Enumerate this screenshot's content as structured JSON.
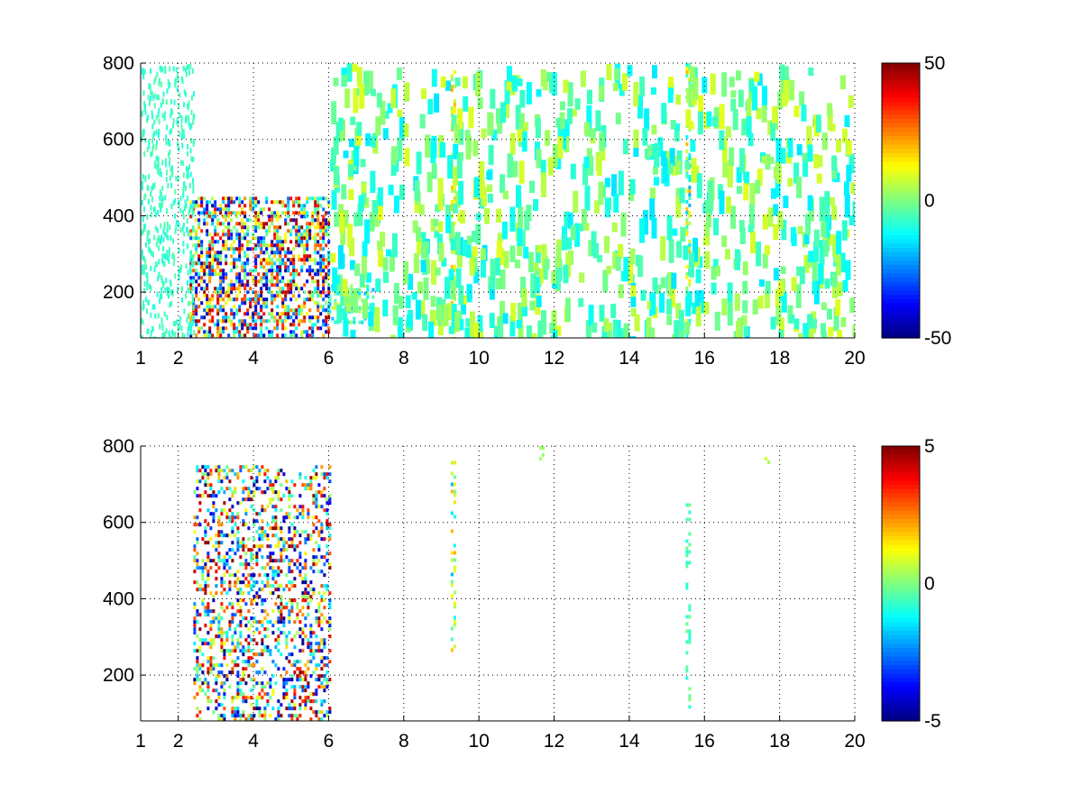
{
  "chart_data": [
    {
      "type": "heatmap",
      "colormap": "jet",
      "x_ticks": [
        1,
        2,
        4,
        6,
        8,
        10,
        12,
        14,
        16,
        18,
        20
      ],
      "y_ticks": [
        200,
        400,
        600,
        800
      ],
      "xlim": [
        1,
        20
      ],
      "ylim": [
        80,
        800
      ],
      "grid": true,
      "colorbar": {
        "min": -50,
        "max": 50,
        "tick_labels": [
          "50",
          "0",
          "-50"
        ]
      },
      "features": [
        {
          "x": [
            2.3,
            6.0
          ],
          "y": [
            80,
            450
          ],
          "desc": "dense band of strong values",
          "range": [
            -50,
            50
          ]
        },
        {
          "x": [
            6.0,
            7.2
          ],
          "y": [
            120,
            220
          ],
          "desc": "small cluster",
          "range": [
            -20,
            10
          ]
        },
        {
          "x": [
            9.25,
            9.35
          ],
          "y": [
            80,
            800
          ],
          "desc": "vertical line",
          "range": [
            0,
            20
          ]
        },
        {
          "x": [
            15.5,
            15.6
          ],
          "y": [
            80,
            800
          ],
          "desc": "vertical line",
          "range": [
            -20,
            20
          ]
        }
      ]
    },
    {
      "type": "heatmap",
      "colormap": "jet",
      "x_ticks": [
        1,
        2,
        4,
        6,
        8,
        10,
        12,
        14,
        16,
        18,
        20
      ],
      "y_ticks": [
        200,
        400,
        600,
        800
      ],
      "xlim": [
        1,
        20
      ],
      "ylim": [
        80,
        800
      ],
      "grid": true,
      "colorbar": {
        "min": -5,
        "max": 5,
        "tick_labels": [
          "5",
          "0",
          "-5"
        ]
      },
      "features": [
        {
          "x": [
            2.4,
            6.0
          ],
          "y": [
            80,
            750
          ],
          "desc": "sparse structures, mostly negative",
          "range": [
            -5,
            5
          ]
        },
        {
          "x": [
            9.25,
            9.35
          ],
          "y": [
            270,
            780
          ],
          "desc": "vertical line",
          "range": [
            -2,
            2
          ]
        },
        {
          "x": [
            15.5,
            15.6
          ],
          "y": [
            110,
            650
          ],
          "desc": "vertical line segments",
          "range": [
            -1,
            0
          ]
        },
        {
          "x": [
            11.6,
            11.7
          ],
          "y": [
            750,
            800
          ],
          "desc": "small patch",
          "range": [
            0,
            1
          ]
        },
        {
          "x": [
            17.6,
            17.7
          ],
          "y": [
            750,
            800
          ],
          "desc": "small patch",
          "range": [
            0,
            1
          ]
        }
      ]
    }
  ]
}
